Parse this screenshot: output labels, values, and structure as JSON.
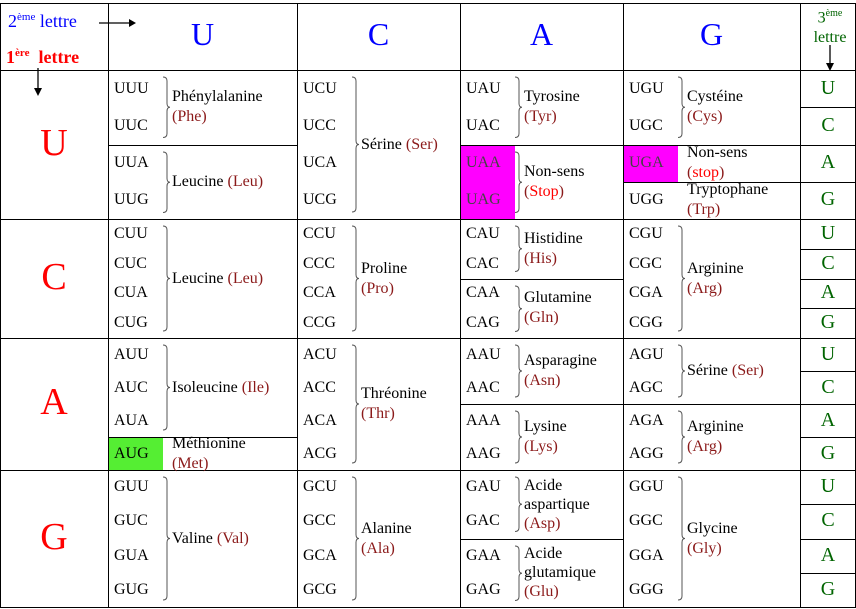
{
  "headers": {
    "second": {
      "sup": "ème",
      "pre": "2",
      "word": "lettre"
    },
    "first": {
      "sup": "ère",
      "pre": "1",
      "word": "lettre"
    },
    "third": {
      "sup": "ème",
      "pre": "3",
      "word": "lettre"
    }
  },
  "cols": [
    "U",
    "C",
    "A",
    "G"
  ],
  "rows": [
    "U",
    "C",
    "A",
    "G"
  ],
  "third_letters": [
    "U",
    "C",
    "A",
    "G",
    "U",
    "C",
    "A",
    "G",
    "U",
    "C",
    "A",
    "G",
    "U",
    "C",
    "A",
    "G"
  ],
  "colors": {
    "first": "#ff0000",
    "second": "#0000ff",
    "third": "#006400",
    "abbr": "#8b1a1a",
    "stop": "#ff00ff",
    "start": "#55ee33"
  },
  "cells": [
    [
      [
        {
          "codons": [
            "UUU",
            "UUC"
          ],
          "name": "Phénylalanine",
          "abbr": "Phe"
        },
        {
          "codons": [
            "UUA",
            "UUG"
          ],
          "name": "Leucine",
          "abbr": "Leu",
          "inline": true
        }
      ],
      [
        {
          "codons": [
            "UCU",
            "UCC",
            "UCA",
            "UCG"
          ],
          "name": "Sérine",
          "abbr": "Ser",
          "inline": true
        }
      ],
      [
        {
          "codons": [
            "UAU",
            "UAC"
          ],
          "name": "Tyrosine",
          "abbr": "Tyr"
        },
        {
          "codons": [
            "UAA",
            "UAG"
          ],
          "name": "Non-sens",
          "abbr": "Stop",
          "stop": true,
          "hl": "stop"
        }
      ],
      [
        {
          "codons": [
            "UGU",
            "UGC"
          ],
          "name": "Cystéine",
          "abbr": "Cys"
        },
        {
          "codons": [
            "UGA"
          ],
          "name": "Non-sens",
          "abbr": "stop",
          "stop": true,
          "hl": "stop"
        },
        {
          "codons": [
            "UGG"
          ],
          "name": "Tryptophane",
          "abbr": "Trp"
        }
      ]
    ],
    [
      [
        {
          "codons": [
            "CUU",
            "CUC",
            "CUA",
            "CUG"
          ],
          "name": "Leucine",
          "abbr": "Leu",
          "inline": true
        }
      ],
      [
        {
          "codons": [
            "CCU",
            "CCC",
            "CCA",
            "CCG"
          ],
          "name": "Proline",
          "abbr": "Pro"
        }
      ],
      [
        {
          "codons": [
            "CAU",
            "CAC"
          ],
          "name": "Histidine",
          "abbr": "His"
        },
        {
          "codons": [
            "CAA",
            "CAG"
          ],
          "name": "Glutamine",
          "abbr": "Gln"
        }
      ],
      [
        {
          "codons": [
            "CGU",
            "CGC",
            "CGA",
            "CGG"
          ],
          "name": "Arginine",
          "abbr": "Arg"
        }
      ]
    ],
    [
      [
        {
          "codons": [
            "AUU",
            "AUC",
            "AUA"
          ],
          "name": "Isoleucine",
          "abbr": "Ile",
          "inline": true
        },
        {
          "codons": [
            "AUG"
          ],
          "name": "Méthionine",
          "abbr": "Met",
          "hl": "start"
        }
      ],
      [
        {
          "codons": [
            "ACU",
            "ACC",
            "ACA",
            "ACG"
          ],
          "name": "Thréonine",
          "abbr": "Thr"
        }
      ],
      [
        {
          "codons": [
            "AAU",
            "AAC"
          ],
          "name": "Asparagine",
          "abbr": "Asn"
        },
        {
          "codons": [
            "AAA",
            "AAG"
          ],
          "name": "Lysine",
          "abbr": "Lys"
        }
      ],
      [
        {
          "codons": [
            "AGU",
            "AGC"
          ],
          "name": "Sérine",
          "abbr": "Ser",
          "inline": true
        },
        {
          "codons": [
            "AGA",
            "AGG"
          ],
          "name": "Arginine",
          "abbr": "Arg"
        }
      ]
    ],
    [
      [
        {
          "codons": [
            "GUU",
            "GUC",
            "GUA",
            "GUG"
          ],
          "name": "Valine",
          "abbr": "Val",
          "inline": true
        }
      ],
      [
        {
          "codons": [
            "GCU",
            "GCC",
            "GCA",
            "GCG"
          ],
          "name": "Alanine",
          "abbr": "Ala"
        }
      ],
      [
        {
          "codons": [
            "GAU",
            "GAC"
          ],
          "name": "Acide aspartique",
          "abbr": "Asp",
          "multiline": true
        },
        {
          "codons": [
            "GAA",
            "GAG"
          ],
          "name": "Acide glutamique",
          "abbr": "Glu",
          "multiline": true
        }
      ],
      [
        {
          "codons": [
            "GGU",
            "GGC",
            "GGA",
            "GGG"
          ],
          "name": "Glycine",
          "abbr": "Gly"
        }
      ]
    ]
  ]
}
